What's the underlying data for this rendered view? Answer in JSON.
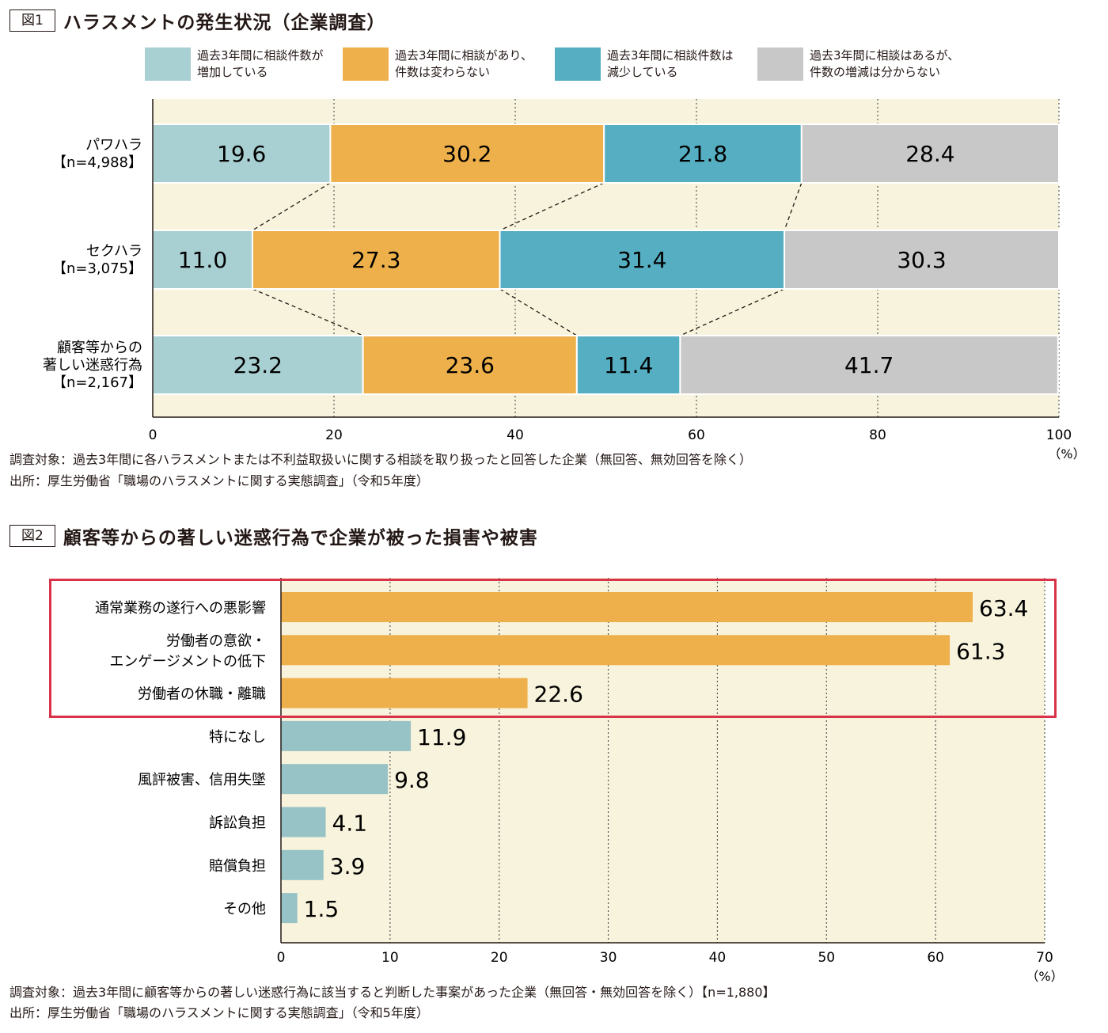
{
  "fig1": {
    "badge": "図1",
    "title": "ハラスメントの発生状況（企業調査）",
    "legend": [
      {
        "label": "過去3年間に相談件数が\n増加している",
        "color": "#a8cfd1"
      },
      {
        "label": "過去3年間に相談があり、\n件数は変わらない",
        "color": "#eeb04b"
      },
      {
        "label": "過去3年間に相談件数は\n減少している",
        "color": "#55aec1"
      },
      {
        "label": "過去3年間に相談はあるが、\n件数の増減は分からない",
        "color": "#c8c8c8"
      }
    ],
    "note_target": "調査対象：過去3年間に各ハラスメントまたは不利益取扱いに関する相談を取り扱ったと回答した企業（無回答、無効回答を除く）",
    "note_source": "出所：厚生労働省「職場のハラスメントに関する実態調査」（令和5年度）"
  },
  "fig2": {
    "badge": "図2",
    "title": "顧客等からの著しい迷惑行為で企業が被った損害や被害",
    "note_target": "調査対象：過去3年間に顧客等からの著しい迷惑行為に該当すると判断した事案があった企業（無回答・無効回答を除く）【n=1,880】",
    "note_source": "出所：厚生労働省「職場のハラスメントに関する実態調査」（令和5年度）"
  },
  "chart_data": [
    {
      "type": "bar",
      "orientation": "horizontal-stacked",
      "categories": [
        [
          "パワハラ",
          "【n=4,988】"
        ],
        [
          "セクハラ",
          "【n=3,075】"
        ],
        [
          "顧客等からの",
          "著しい迷惑行為",
          "【n=2,167】"
        ]
      ],
      "series": [
        {
          "name": "過去3年間に相談件数が増加している",
          "values": [
            19.6,
            11.0,
            23.2
          ],
          "color": "#a8cfd1"
        },
        {
          "name": "過去3年間に相談があり、件数は変わらない",
          "values": [
            30.2,
            27.3,
            23.6
          ],
          "color": "#eeb04b"
        },
        {
          "name": "過去3年間に相談件数は減少している",
          "values": [
            21.8,
            31.4,
            11.4
          ],
          "color": "#55aec1"
        },
        {
          "name": "過去3年間に相談はあるが、件数の増減は分からない",
          "values": [
            28.4,
            30.3,
            41.7
          ],
          "color": "#c8c8c8"
        }
      ],
      "xlim": [
        0,
        100
      ],
      "xticks": [
        0,
        20,
        40,
        60,
        80,
        100
      ],
      "unit": "（%）",
      "grid": "vertical dotted",
      "background": "#f8f3dc"
    },
    {
      "type": "bar",
      "orientation": "horizontal",
      "categories": [
        [
          "通常業務の遂行への悪影響"
        ],
        [
          "労働者の意欲・",
          "エンゲージメントの低下"
        ],
        [
          "労働者の休職・離職"
        ],
        [
          "特になし"
        ],
        [
          "風評被害、信用失墜"
        ],
        [
          "訴訟負担"
        ],
        [
          "賠償負担"
        ],
        [
          "その他"
        ]
      ],
      "values": [
        63.4,
        61.3,
        22.6,
        11.9,
        9.8,
        4.1,
        3.9,
        1.5
      ],
      "colors": [
        "#eeb04b",
        "#eeb04b",
        "#eeb04b",
        "#98c3c6",
        "#98c3c6",
        "#98c3c6",
        "#98c3c6",
        "#98c3c6"
      ],
      "highlighted": [
        0,
        1,
        2
      ],
      "highlight_color": "#d9334a",
      "xlim": [
        0,
        70
      ],
      "xticks": [
        0,
        10,
        20,
        30,
        40,
        50,
        60,
        70
      ],
      "unit": "（%）",
      "grid": "vertical dotted",
      "background": "#f8f3dc"
    }
  ]
}
